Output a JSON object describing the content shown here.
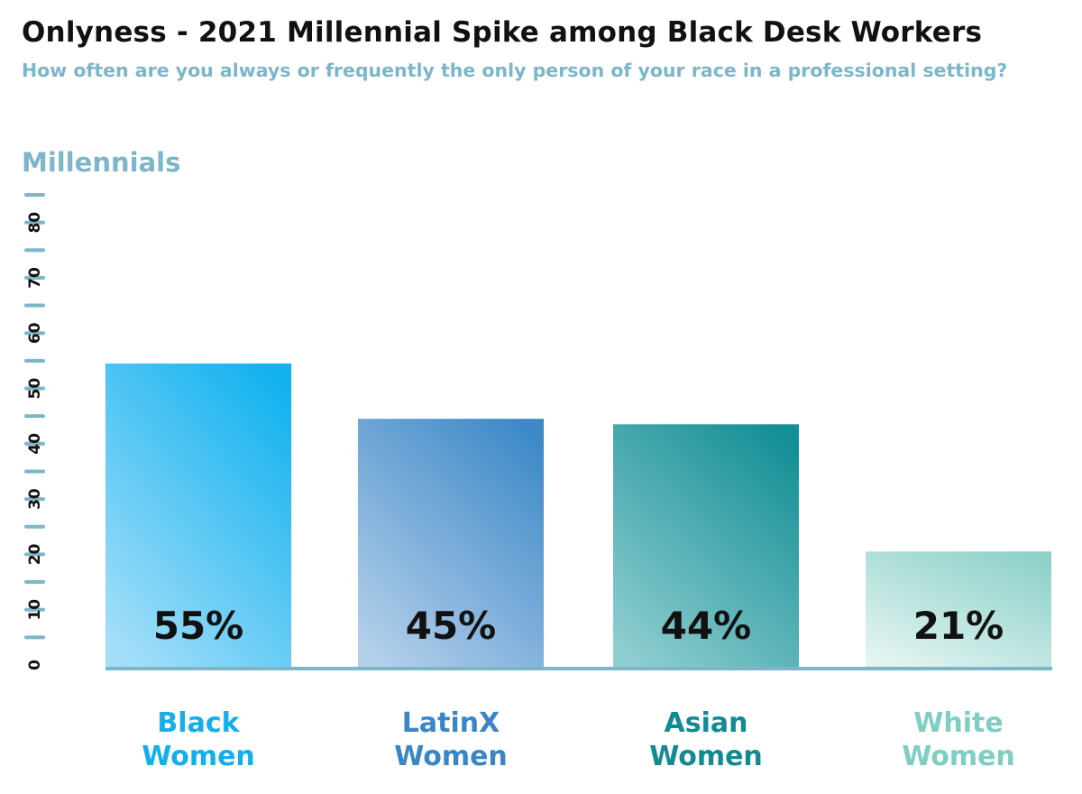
{
  "title": "Onlyness - 2021 Millennial Spike among Black Desk Workers",
  "subtitle": "How often are you always or frequently the only person of your race in a professional setting?",
  "group_label": "Millennials",
  "colors": {
    "axis": "#7bb6c9",
    "tick_text": "#111111",
    "value_text": "#111111"
  },
  "chart_data": {
    "type": "bar",
    "title": "Onlyness - 2021 Millennial Spike among Black Desk Workers",
    "subtitle": "How often are you always or frequently the only person of your race in a professional setting?",
    "xlabel": "",
    "ylabel": "",
    "ylim": [
      0,
      85
    ],
    "yticks": [
      0,
      10,
      20,
      30,
      40,
      50,
      60,
      70,
      80
    ],
    "ytick_labels": [
      "0",
      "10",
      "20",
      "30",
      "40",
      "50",
      "60",
      "70",
      "80"
    ],
    "grid": false,
    "legend": "none",
    "categories": [
      [
        "Black",
        "Women"
      ],
      [
        "LatinX",
        "Women"
      ],
      [
        "Asian",
        "Women"
      ],
      [
        "White",
        "Women"
      ]
    ],
    "values": [
      55,
      45,
      44,
      21
    ],
    "value_labels": [
      "55%",
      "45%",
      "44%",
      "21%"
    ],
    "bar_colors": [
      {
        "top": "#12b2ef",
        "bottom": "#a3def9",
        "label": "#14aeea"
      },
      {
        "top": "#3d89c8",
        "bottom": "#b3cfea",
        "label": "#3a85c4"
      },
      {
        "top": "#148f96",
        "bottom": "#8ecdd0",
        "label": "#128a92"
      },
      {
        "top": "#8dd1c9",
        "bottom": "#e4f4f2",
        "label": "#7fcdc3"
      }
    ]
  }
}
